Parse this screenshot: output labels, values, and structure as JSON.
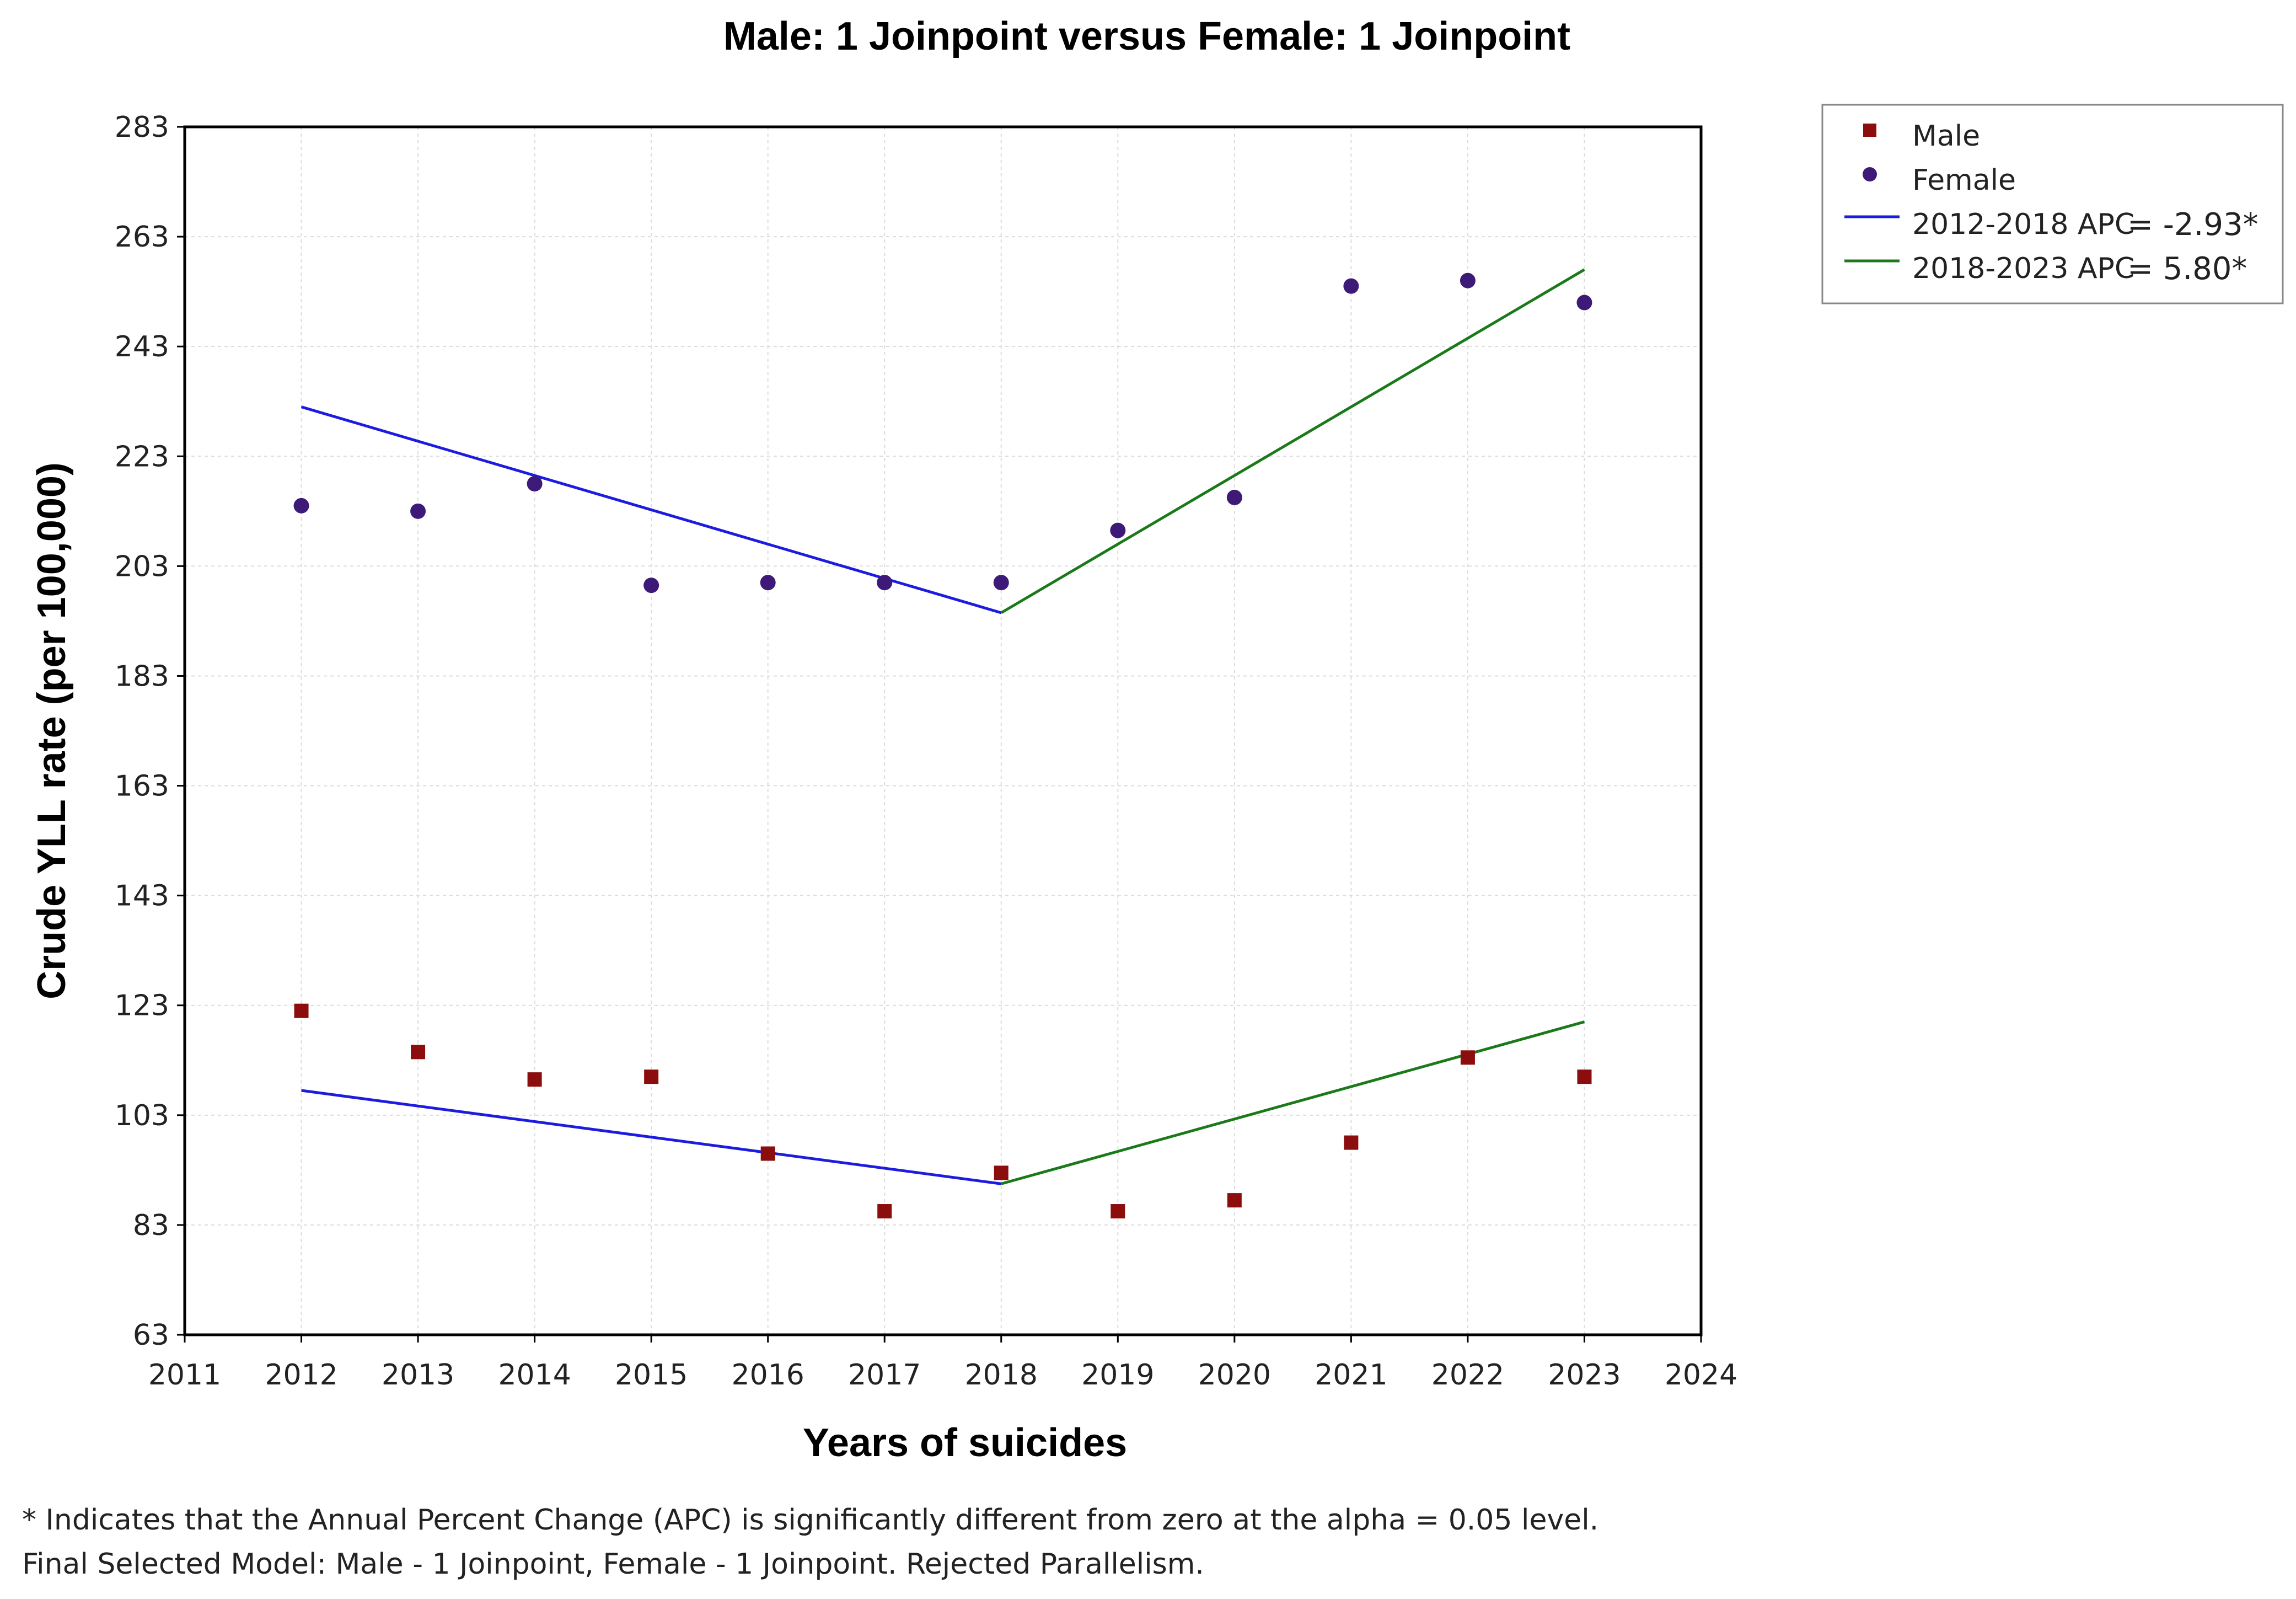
{
  "chart_data": {
    "type": "scatter",
    "title": "Male: 1 Joinpoint versus Female: 1 Joinpoint",
    "xlabel": "Years of suicides",
    "ylabel": "Crude YLL rate (per 100,000)",
    "xlim": [
      2011,
      2024
    ],
    "ylim": [
      63,
      283
    ],
    "x_ticks": [
      2011,
      2012,
      2013,
      2014,
      2015,
      2016,
      2017,
      2018,
      2019,
      2020,
      2021,
      2022,
      2023,
      2024
    ],
    "y_ticks": [
      63,
      83,
      103,
      123,
      143,
      163,
      183,
      203,
      223,
      243,
      263,
      283
    ],
    "grid": true,
    "legend_position": "top-right outside",
    "series": [
      {
        "name": "Male",
        "marker": "square",
        "color": "#8b0d0d",
        "x": [
          2012,
          2013,
          2014,
          2015,
          2016,
          2017,
          2018,
          2019,
          2020,
          2021,
          2022,
          2023
        ],
        "values": [
          122,
          114.5,
          109.5,
          110,
          96,
          85.5,
          92.5,
          85.5,
          87.5,
          98,
          113.5,
          110
        ]
      },
      {
        "name": "Female",
        "marker": "circle",
        "color": "#3d1a78",
        "x": [
          2012,
          2013,
          2014,
          2015,
          2016,
          2017,
          2018,
          2019,
          2020,
          2021,
          2022,
          2023
        ],
        "values": [
          214,
          213,
          218,
          199.5,
          200,
          200,
          200,
          209.5,
          215.5,
          254,
          255,
          251
        ]
      }
    ],
    "trend_lines": [
      {
        "group": "Female",
        "segment": "2012-2018",
        "color": "#1c1ce0",
        "x": [
          2012,
          2018
        ],
        "y": [
          232,
          194.5
        ]
      },
      {
        "group": "Female",
        "segment": "2018-2023",
        "color": "#1a7a1a",
        "x": [
          2018,
          2023
        ],
        "y": [
          194.5,
          257
        ]
      },
      {
        "group": "Male",
        "segment": "2012-2018",
        "color": "#1c1ce0",
        "x": [
          2012,
          2018
        ],
        "y": [
          107.5,
          90.5
        ]
      },
      {
        "group": "Male",
        "segment": "2018-2023",
        "color": "#1a7a1a",
        "x": [
          2018,
          2023
        ],
        "y": [
          90.5,
          120
        ]
      }
    ],
    "legend": [
      {
        "label": "Male",
        "marker": "square",
        "color": "#8b0d0d"
      },
      {
        "label": "Female",
        "marker": "circle",
        "color": "#3d1a78"
      },
      {
        "label": "2012-2018 APC",
        "value": "= -2.93*",
        "line_color": "#1c1ce0"
      },
      {
        "label": "2018-2023 APC",
        "value": "= 5.80*",
        "line_color": "#1a7a1a"
      }
    ]
  },
  "footnotes": {
    "line1": "* Indicates that the Annual Percent Change (APC) is significantly different from zero at the alpha = 0.05 level.",
    "line2": "Final Selected Model: Male - 1 Joinpoint, Female - 1 Joinpoint. Rejected Parallelism."
  }
}
